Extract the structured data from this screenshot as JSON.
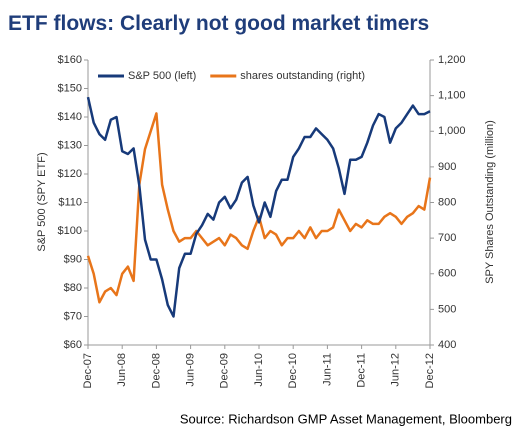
{
  "chart_data": {
    "type": "line",
    "title": "ETF flows: Clearly not good market timers",
    "source": "Source: Richardson GMP Asset Management, Bloomberg",
    "y_label": "S&P 500 (SPY ETF)",
    "y2_label": "SPY Shares Outstanding (million)",
    "categories": [
      "Dec-07",
      null,
      null,
      null,
      null,
      null,
      "Jun-08",
      null,
      null,
      null,
      null,
      null,
      "Dec-08",
      null,
      null,
      null,
      null,
      null,
      "Jun-09",
      null,
      null,
      null,
      null,
      null,
      "Dec-09",
      null,
      null,
      null,
      null,
      null,
      "Jun-10",
      null,
      null,
      null,
      null,
      null,
      "Dec-10",
      null,
      null,
      null,
      null,
      null,
      "Jun-11",
      null,
      null,
      null,
      null,
      null,
      "Dec-11",
      null,
      null,
      null,
      null,
      null,
      "Jun-12",
      null,
      null,
      null,
      null,
      null,
      "Dec-12"
    ],
    "series": [
      {
        "name": "S&P 500 (left)",
        "color": "#173a7a",
        "axis": "y",
        "values": [
          147,
          138,
          134,
          132,
          139,
          140,
          128,
          127,
          129,
          116,
          97,
          90,
          90,
          83,
          74,
          70,
          87,
          92,
          92,
          99,
          102,
          106,
          104,
          110,
          112,
          108,
          111,
          117,
          119,
          109,
          103,
          110,
          105,
          114,
          118,
          118,
          126,
          129,
          133,
          133,
          136,
          134,
          132,
          129,
          122,
          113,
          125,
          125,
          126,
          131,
          137,
          141,
          140,
          131,
          136,
          138,
          141,
          144,
          141,
          141,
          142
        ]
      },
      {
        "name": "shares outstanding (right)",
        "color": "#e8751a",
        "axis": "y2",
        "values": [
          650,
          600,
          520,
          550,
          560,
          540,
          600,
          620,
          580,
          850,
          950,
          1000,
          1050,
          850,
          780,
          720,
          690,
          700,
          700,
          720,
          700,
          680,
          690,
          700,
          680,
          710,
          700,
          680,
          670,
          720,
          760,
          700,
          720,
          710,
          680,
          700,
          700,
          720,
          700,
          730,
          700,
          720,
          720,
          730,
          780,
          750,
          720,
          740,
          730,
          750,
          740,
          740,
          760,
          770,
          760,
          740,
          760,
          770,
          790,
          780,
          870
        ]
      }
    ],
    "ylim": [
      60,
      160
    ],
    "yticks": [
      {
        "value": 60,
        "label": "$60"
      },
      {
        "value": 70,
        "label": "$70"
      },
      {
        "value": 80,
        "label": "$80"
      },
      {
        "value": 90,
        "label": "$90"
      },
      {
        "value": 100,
        "label": "$100"
      },
      {
        "value": 110,
        "label": "$110"
      },
      {
        "value": 120,
        "label": "$120"
      },
      {
        "value": 130,
        "label": "$130"
      },
      {
        "value": 140,
        "label": "$140"
      },
      {
        "value": 150,
        "label": "$150"
      },
      {
        "value": 160,
        "label": "$160"
      }
    ],
    "y2lim": [
      400,
      1200
    ],
    "y2ticks": [
      400,
      500,
      600,
      700,
      800,
      900,
      {
        "value": 1000,
        "label": "1,000"
      },
      {
        "value": 1100,
        "label": "1,100"
      },
      {
        "value": 1200,
        "label": "1,200"
      }
    ],
    "grid": false,
    "legend": "top-left"
  }
}
